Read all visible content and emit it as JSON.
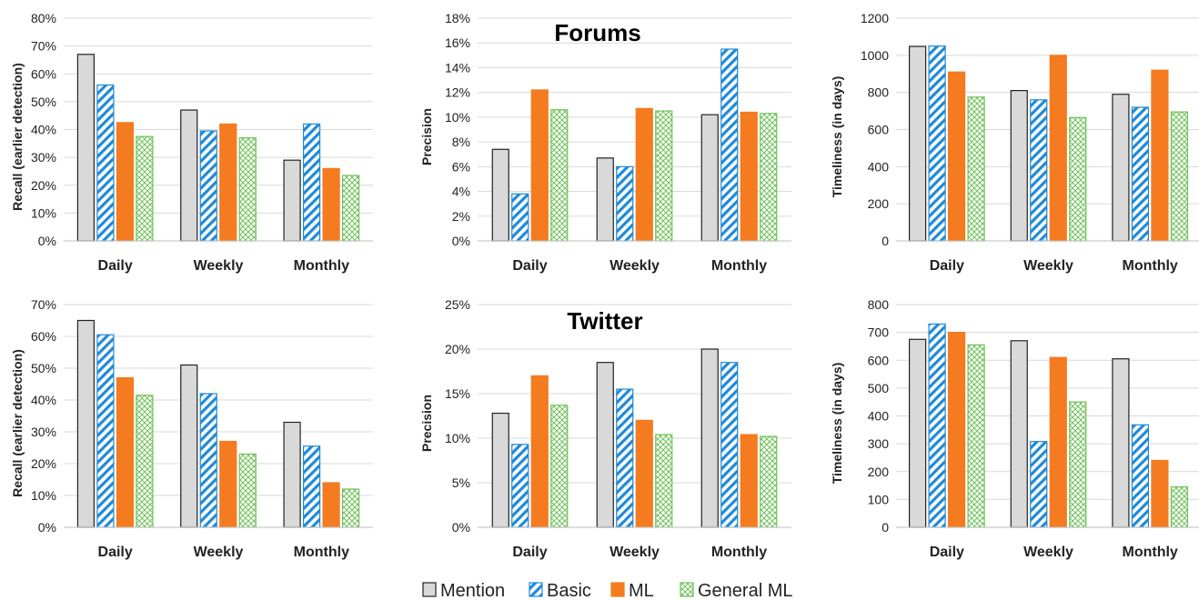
{
  "colors": {
    "mention_fill": "#d9d9d9",
    "mention_stroke": "#222222",
    "basic": "#1f8ad6",
    "ml": "#f47b20",
    "general_ml": "#70c15a",
    "grid": "#d9d9d9"
  },
  "section_titles": {
    "forums": "Forums",
    "twitter": "Twitter"
  },
  "legend": [
    {
      "name": "Mention",
      "icon": "gray-box-icon"
    },
    {
      "name": "Basic",
      "icon": "blue-diagonal-hatch-icon"
    },
    {
      "name": "ML",
      "icon": "orange-box-icon"
    },
    {
      "name": "General ML",
      "icon": "green-crosshatch-icon"
    }
  ],
  "chart_data": [
    {
      "type": "bar",
      "group": "Forums",
      "metric": "recall",
      "categories": [
        "Daily",
        "Weekly",
        "Monthly"
      ],
      "ylabel": "Recall (earlier detection)",
      "ylim": [
        0,
        80
      ],
      "yticks": [
        "0%",
        "10%",
        "20%",
        "30%",
        "40%",
        "50%",
        "60%",
        "70%",
        "80%"
      ],
      "grid": true,
      "series": [
        {
          "name": "Mention",
          "values": [
            67,
            47,
            29
          ]
        },
        {
          "name": "Basic",
          "values": [
            56,
            39.5,
            42
          ]
        },
        {
          "name": "ML",
          "values": [
            42.5,
            42,
            26
          ]
        },
        {
          "name": "General ML",
          "values": [
            37.5,
            37,
            23.5
          ]
        }
      ]
    },
    {
      "type": "bar",
      "group": "Forums",
      "metric": "precision",
      "categories": [
        "Daily",
        "Weekly",
        "Monthly"
      ],
      "ylabel": "Precision",
      "ylim": [
        0,
        18
      ],
      "yticks": [
        "0%",
        "2%",
        "4%",
        "6%",
        "8%",
        "10%",
        "12%",
        "14%",
        "16%",
        "18%"
      ],
      "grid": true,
      "series": [
        {
          "name": "Mention",
          "values": [
            7.4,
            6.7,
            10.2
          ]
        },
        {
          "name": "Basic",
          "values": [
            3.8,
            6.0,
            15.5
          ]
        },
        {
          "name": "ML",
          "values": [
            12.2,
            10.7,
            10.4
          ]
        },
        {
          "name": "General ML",
          "values": [
            10.6,
            10.5,
            10.3
          ]
        }
      ]
    },
    {
      "type": "bar",
      "group": "Forums",
      "metric": "timeliness",
      "categories": [
        "Daily",
        "Weekly",
        "Monthly"
      ],
      "ylabel": "Timeliness (in days)",
      "ylim": [
        0,
        1200
      ],
      "yticks": [
        "0",
        "200",
        "400",
        "600",
        "800",
        "1000",
        "1200"
      ],
      "grid": true,
      "series": [
        {
          "name": "Mention",
          "values": [
            1048,
            810,
            790
          ]
        },
        {
          "name": "Basic",
          "values": [
            1050,
            760,
            720
          ]
        },
        {
          "name": "ML",
          "values": [
            910,
            1000,
            920
          ]
        },
        {
          "name": "General ML",
          "values": [
            775,
            665,
            695
          ]
        }
      ]
    },
    {
      "type": "bar",
      "group": "Twitter",
      "metric": "recall",
      "categories": [
        "Daily",
        "Weekly",
        "Monthly"
      ],
      "ylabel": "Recall (earlier detection)",
      "ylim": [
        0,
        70
      ],
      "yticks": [
        "0%",
        "10%",
        "20%",
        "30%",
        "40%",
        "50%",
        "60%",
        "70%"
      ],
      "grid": true,
      "series": [
        {
          "name": "Mention",
          "values": [
            65,
            51,
            33
          ]
        },
        {
          "name": "Basic",
          "values": [
            60.5,
            42,
            25.5
          ]
        },
        {
          "name": "ML",
          "values": [
            47,
            27,
            14
          ]
        },
        {
          "name": "General ML",
          "values": [
            41.5,
            23,
            12
          ]
        }
      ]
    },
    {
      "type": "bar",
      "group": "Twitter",
      "metric": "precision",
      "categories": [
        "Daily",
        "Weekly",
        "Monthly"
      ],
      "ylabel": "Precision",
      "ylim": [
        0,
        25
      ],
      "yticks": [
        "0%",
        "5%",
        "10%",
        "15%",
        "20%",
        "25%"
      ],
      "grid": true,
      "series": [
        {
          "name": "Mention",
          "values": [
            12.8,
            18.5,
            20.0
          ]
        },
        {
          "name": "Basic",
          "values": [
            9.3,
            15.5,
            18.5
          ]
        },
        {
          "name": "ML",
          "values": [
            17.0,
            12.0,
            10.4
          ]
        },
        {
          "name": "General ML",
          "values": [
            13.7,
            10.4,
            10.2
          ]
        }
      ]
    },
    {
      "type": "bar",
      "group": "Twitter",
      "metric": "timeliness",
      "categories": [
        "Daily",
        "Weekly",
        "Monthly"
      ],
      "ylabel": "Timeliness (in days)",
      "ylim": [
        0,
        800
      ],
      "yticks": [
        "0",
        "100",
        "200",
        "300",
        "400",
        "500",
        "600",
        "700",
        "800"
      ],
      "grid": true,
      "series": [
        {
          "name": "Mention",
          "values": [
            675,
            670,
            605
          ]
        },
        {
          "name": "Basic",
          "values": [
            730,
            308,
            368
          ]
        },
        {
          "name": "ML",
          "values": [
            700,
            610,
            240
          ]
        },
        {
          "name": "General ML",
          "values": [
            655,
            450,
            145
          ]
        }
      ]
    }
  ]
}
